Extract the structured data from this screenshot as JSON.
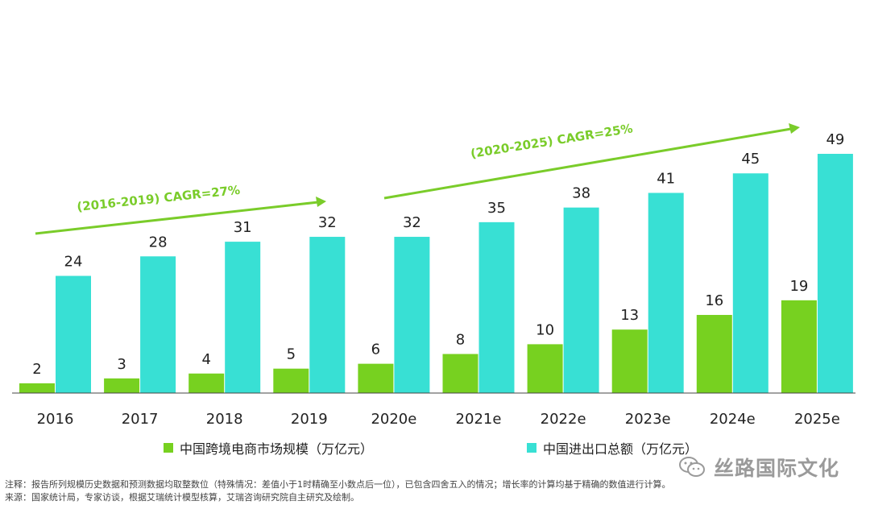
{
  "chart_data": {
    "type": "bar",
    "categories": [
      "2016",
      "2017",
      "2018",
      "2019",
      "2020e",
      "2021e",
      "2022e",
      "2023e",
      "2024e",
      "2025e"
    ],
    "series": [
      {
        "name": "中国跨境电商市场规模（万亿元）",
        "values": [
          2,
          3,
          4,
          5,
          6,
          8,
          10,
          13,
          16,
          19
        ],
        "color": "#77d120"
      },
      {
        "name": "中国进出口总额（万亿元）",
        "values": [
          24,
          28,
          31,
          32,
          32,
          35,
          38,
          41,
          45,
          49
        ],
        "color": "#38e0d4"
      }
    ],
    "ylim": [
      0,
      49
    ],
    "grid": false,
    "annotations": [
      {
        "text": "(2016-2019)   CAGR=27%",
        "color": "#7acc2a"
      },
      {
        "text": "(2020-2025)  CAGR=25%",
        "color": "#7acc2a"
      }
    ]
  },
  "legend": {
    "green_label": "中国跨境电商市场规模（万亿元）",
    "cyan_label": "中国进出口总额（万亿元）"
  },
  "notes": {
    "line1": "注释：报告所列规模历史数据和预测数据均取整数位（特殊情况：差值小于1时精确至小数点后一位），已包含四舍五入的情况；增长率的计算均基于精确的数值进行计算。",
    "line2": "来源：国家统计局，专家访谈，根据艾瑞统计模型核算，艾瑞咨询研究院自主研究及绘制。"
  },
  "watermark": {
    "text": "丝路国际文化",
    "icon": "wechat-icon"
  }
}
